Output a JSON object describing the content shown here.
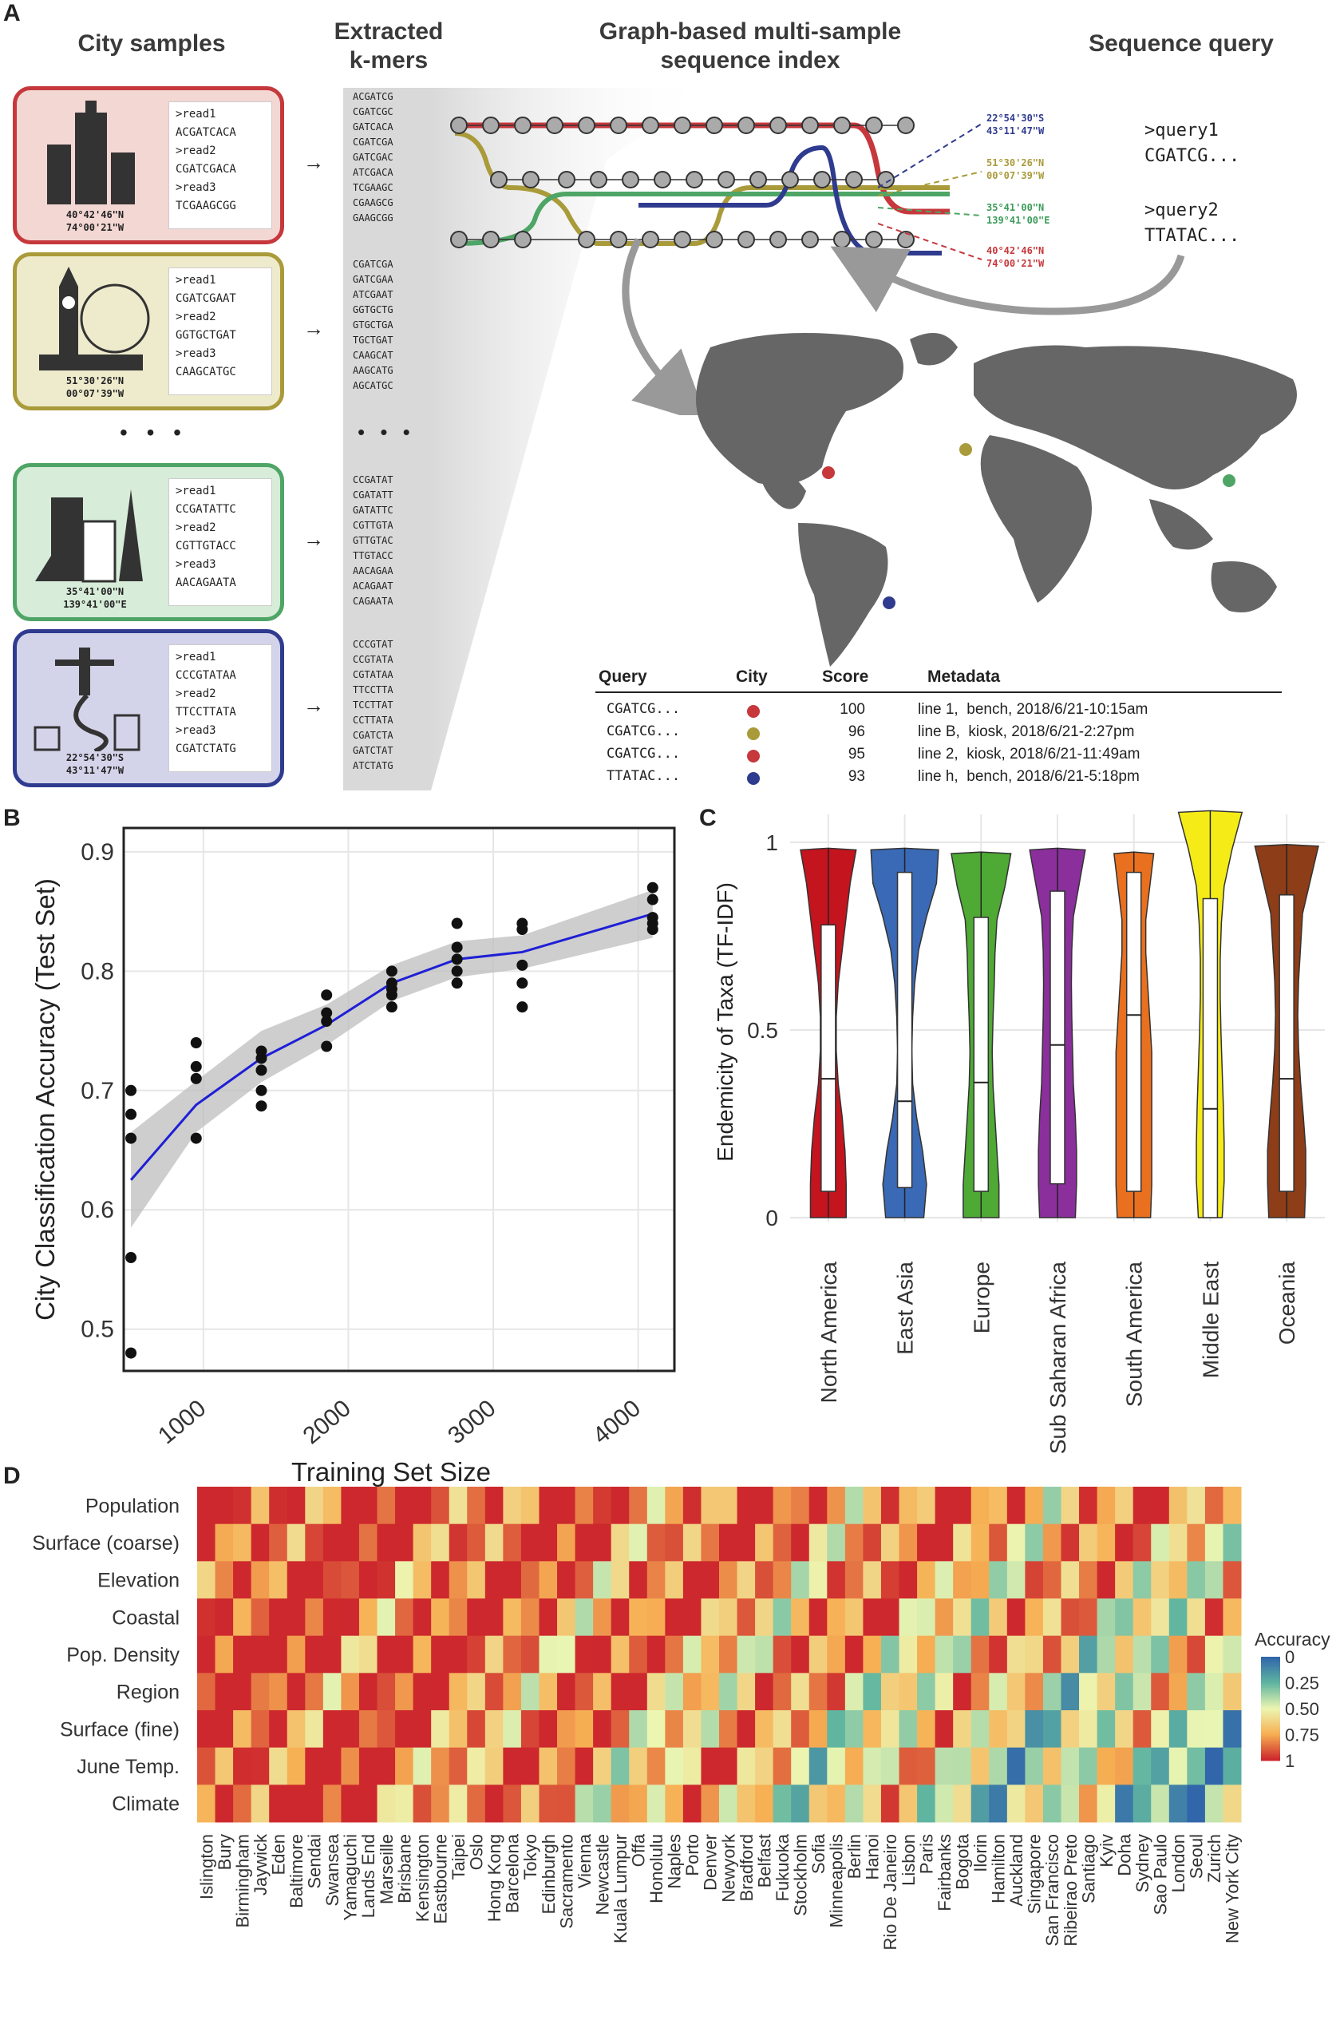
{
  "panelA": {
    "letter": "A",
    "headers": {
      "city_samples": "City samples",
      "kmers": "Extracted\nk-mers",
      "index": "Graph-based multi-sample\nsequence index",
      "query": "Sequence query"
    },
    "cards": [
      {
        "color": "#c6383c",
        "fill": "#f3d7d3",
        "reads": ">read1\nACGATCACA\n>read2\nCGATCGACA\n>read3\nTCGAAGCGG",
        "coord": "40°42'46\"N\n74°00'21\"W",
        "icon": "skyscraper-icon"
      },
      {
        "color": "#a99b3a",
        "fill": "#eeeacc",
        "reads": ">read1\nCGATCGAAT\n>read2\nGGTGCTGAT\n>read3\nCAAGCATGC",
        "coord": "51°30'26\"N\n00°07'39\"W",
        "icon": "big-ben-icon"
      },
      {
        "color": "#4ea566",
        "fill": "#d7ecd9",
        "reads": ">read1\nCCGATATTC\n>read2\nCGTTGTACC\n>read3\nAACAGAATA",
        "coord": "35°41'00\"N\n139°41'00\"E",
        "icon": "tokyo-tower-icon"
      },
      {
        "color": "#2f3b8f",
        "fill": "#d3d4ea",
        "reads": ">read1\nCCCGTATAA\n>read2\nTTCCTTATA\n>read3\nCGATCTATG",
        "coord": "22°54'30\"S\n43°11'47\"W",
        "icon": "christ-statue-icon"
      }
    ],
    "ellipsis": "• • •",
    "kmer_groups": [
      "ACGATCG\nCGATCGC\nGATCACA\nCGATCGA\nGATCGAC\nATCGACA\nTCGAAGC\nCGAAGCG\nGAAGCGG",
      "CGATCGA\nGATCGAA\nATCGAAT\nGGTGCTG\nGTGCTGA\nTGCTGAT\nCAAGCAT\nAAGCATG\nAGCATGC",
      "CCGATAT\nCGATATT\nGATATTC\nCGTTGTA\nGTTGTAC\nTTGTACC\nAACAGAA\nACAGAAT\nCAGAATA",
      "CCCGTAT\nCCGTATA\nCGTATAA\nTTCCTTA\nTCCTTAT\nCCTTATA\nCGATCTA\nGATCTAT\nATCTATG"
    ],
    "gps_labels": [
      {
        "text": "22°54'30\"S\n43°11'47\"W",
        "color": "#2f3b8f"
      },
      {
        "text": "51°30'26\"N\n00°07'39\"W",
        "color": "#a99b3a"
      },
      {
        "text": "35°41'00\"N\n139°41'00\"E",
        "color": "#3c9c5a"
      },
      {
        "text": "40°42'46\"N\n74°00'21\"W",
        "color": "#c6383c"
      }
    ],
    "queries": [
      ">query1\nCGATCG...",
      ">query2\nTTATAC..."
    ],
    "table": {
      "headers": [
        "Query",
        "City",
        "Score",
        "Metadata"
      ],
      "rows": [
        {
          "query": "CGATCG...",
          "color": "#c6383c",
          "score": "100",
          "meta": "line 1,  bench, 2018/6/21-10:15am"
        },
        {
          "query": "CGATCG...",
          "color": "#a99b3a",
          "score": "96",
          "meta": "line B,  kiosk, 2018/6/21-2:27pm"
        },
        {
          "query": "CGATCG...",
          "color": "#c6383c",
          "score": "95",
          "meta": "line 2,  kiosk, 2018/6/21-11:49am"
        },
        {
          "query": "TTATAC...",
          "color": "#2f3b8f",
          "score": "93",
          "meta": "line h,  bench, 2018/6/21-5:18pm"
        }
      ]
    }
  },
  "chart_data": [
    {
      "panel": "B",
      "type": "scatter",
      "xlabel": "Training Set Size",
      "ylabel": "City Classification Accuracy (Test Set)",
      "xlim": [
        450,
        4250
      ],
      "ylim": [
        0.465,
        0.92
      ],
      "xticks": [
        1000,
        2000,
        3000,
        4000
      ],
      "yticks": [
        0.5,
        0.6,
        0.7,
        0.8,
        0.9
      ],
      "points": [
        [
          500,
          0.48
        ],
        [
          500,
          0.56
        ],
        [
          500,
          0.66
        ],
        [
          500,
          0.68
        ],
        [
          500,
          0.7
        ],
        [
          950,
          0.66
        ],
        [
          950,
          0.71
        ],
        [
          950,
          0.72
        ],
        [
          950,
          0.74
        ],
        [
          1400,
          0.687
        ],
        [
          1400,
          0.7
        ],
        [
          1400,
          0.717
        ],
        [
          1400,
          0.727
        ],
        [
          1400,
          0.733
        ],
        [
          1850,
          0.737
        ],
        [
          1850,
          0.758
        ],
        [
          1850,
          0.765
        ],
        [
          1850,
          0.78
        ],
        [
          2300,
          0.77
        ],
        [
          2300,
          0.78
        ],
        [
          2300,
          0.785
        ],
        [
          2300,
          0.79
        ],
        [
          2300,
          0.8
        ],
        [
          2750,
          0.79
        ],
        [
          2750,
          0.8
        ],
        [
          2750,
          0.81
        ],
        [
          2750,
          0.82
        ],
        [
          2750,
          0.84
        ],
        [
          3200,
          0.77
        ],
        [
          3200,
          0.79
        ],
        [
          3200,
          0.805
        ],
        [
          3200,
          0.835
        ],
        [
          3200,
          0.84
        ],
        [
          4100,
          0.835
        ],
        [
          4100,
          0.84
        ],
        [
          4100,
          0.845
        ],
        [
          4100,
          0.86
        ],
        [
          4100,
          0.87
        ]
      ],
      "smooth": [
        [
          500,
          0.625
        ],
        [
          950,
          0.688
        ],
        [
          1400,
          0.727
        ],
        [
          1850,
          0.755
        ],
        [
          2300,
          0.79
        ],
        [
          2750,
          0.81
        ],
        [
          3200,
          0.816
        ],
        [
          4100,
          0.848
        ]
      ],
      "band_low": [
        [
          500,
          0.585
        ],
        [
          950,
          0.665
        ],
        [
          1400,
          0.707
        ],
        [
          1850,
          0.738
        ],
        [
          2300,
          0.775
        ],
        [
          2750,
          0.795
        ],
        [
          3200,
          0.802
        ],
        [
          4100,
          0.828
        ]
      ],
      "band_high": [
        [
          500,
          0.665
        ],
        [
          950,
          0.708
        ],
        [
          1400,
          0.75
        ],
        [
          1850,
          0.772
        ],
        [
          2300,
          0.805
        ],
        [
          2750,
          0.825
        ],
        [
          3200,
          0.83
        ],
        [
          4100,
          0.868
        ]
      ]
    },
    {
      "panel": "C",
      "type": "violin",
      "ylabel": "Endemicity of Taxa (TF-IDF)",
      "ylim": [
        0,
        1.08
      ],
      "yticks": [
        0,
        0.5,
        1
      ],
      "categories": [
        "North America",
        "East Asia",
        "Europe",
        "Sub Saharan Africa",
        "South America",
        "Middle East",
        "Oceania"
      ],
      "colors": [
        "#c4141e",
        "#3a69b5",
        "#4ea935",
        "#8a2f9b",
        "#e8701f",
        "#f5ec17",
        "#8d3d17"
      ],
      "medians": [
        0.37,
        0.31,
        0.36,
        0.46,
        0.54,
        0.29,
        0.37
      ],
      "q1": [
        0.07,
        0.08,
        0.07,
        0.09,
        0.07,
        0.0,
        0.07
      ],
      "q3": [
        0.78,
        0.92,
        0.8,
        0.87,
        0.92,
        0.85,
        0.86
      ],
      "max": [
        0.98,
        0.98,
        0.97,
        0.98,
        0.97,
        1.08,
        0.99
      ],
      "widths": [
        [
          0.45,
          0.45,
          0.42,
          0.35,
          0.25,
          0.2,
          0.2,
          0.25,
          0.35,
          0.45,
          0.55,
          0.7
        ],
        [
          0.48,
          0.55,
          0.45,
          0.3,
          0.2,
          0.18,
          0.2,
          0.25,
          0.35,
          0.55,
          0.8,
          0.85
        ],
        [
          0.45,
          0.45,
          0.4,
          0.35,
          0.3,
          0.28,
          0.3,
          0.33,
          0.35,
          0.4,
          0.6,
          0.75
        ],
        [
          0.45,
          0.48,
          0.48,
          0.45,
          0.4,
          0.38,
          0.36,
          0.35,
          0.36,
          0.4,
          0.55,
          0.7
        ],
        [
          0.42,
          0.45,
          0.45,
          0.45,
          0.45,
          0.45,
          0.4,
          0.35,
          0.3,
          0.3,
          0.4,
          0.5
        ],
        [
          0.3,
          0.35,
          0.35,
          0.33,
          0.3,
          0.27,
          0.25,
          0.25,
          0.28,
          0.35,
          0.55,
          0.8
        ],
        [
          0.45,
          0.48,
          0.48,
          0.42,
          0.35,
          0.3,
          0.28,
          0.3,
          0.35,
          0.4,
          0.6,
          0.8
        ]
      ]
    },
    {
      "panel": "D",
      "type": "heatmap",
      "rows": [
        "Population",
        "Surface (coarse)",
        "Elevation",
        "Coastal",
        "Pop. Density",
        "Region",
        "Surface (fine)",
        "June Temp.",
        "Climate"
      ],
      "columns": [
        "Islington",
        "Bury",
        "Birmingham",
        "Jaywick",
        "Eden",
        "Baltimore",
        "Sendai",
        "Swansea",
        "Yamaguchi",
        "Lands End",
        "Marseille",
        "Brisbane",
        "Kensington",
        "Eastbourne",
        "Taipei",
        "Oslo",
        "Hong Kong",
        "Barcelona",
        "Tokyo",
        "Edinburgh",
        "Sacramento",
        "Vienna",
        "Newcastle",
        "Kuala Lumpur",
        "Offa",
        "Honolulu",
        "Naples",
        "Porto",
        "Denver",
        "Newyork",
        "Bradford",
        "Belfast",
        "Fukuoka",
        "Stockholm",
        "Sofia",
        "Minneapolis",
        "Berlin",
        "Hanoi",
        "Rio De Janeiro",
        "Lisbon",
        "Paris",
        "Fairbanks",
        "Bogota",
        "Ilorin",
        "Hamilton",
        "Auckland",
        "Singapore",
        "San Francisco",
        "Ribeirao Preto",
        "Santiago",
        "Kyiv",
        "Doha",
        "Sydney",
        "Sao Paulo",
        "London",
        "Seoul",
        "Zurich",
        "New York City"
      ],
      "colorbar": {
        "title": "Accuracy",
        "ticks": [
          "0",
          "0.25",
          "0.50",
          "0.75",
          "1"
        ]
      }
    }
  ]
}
